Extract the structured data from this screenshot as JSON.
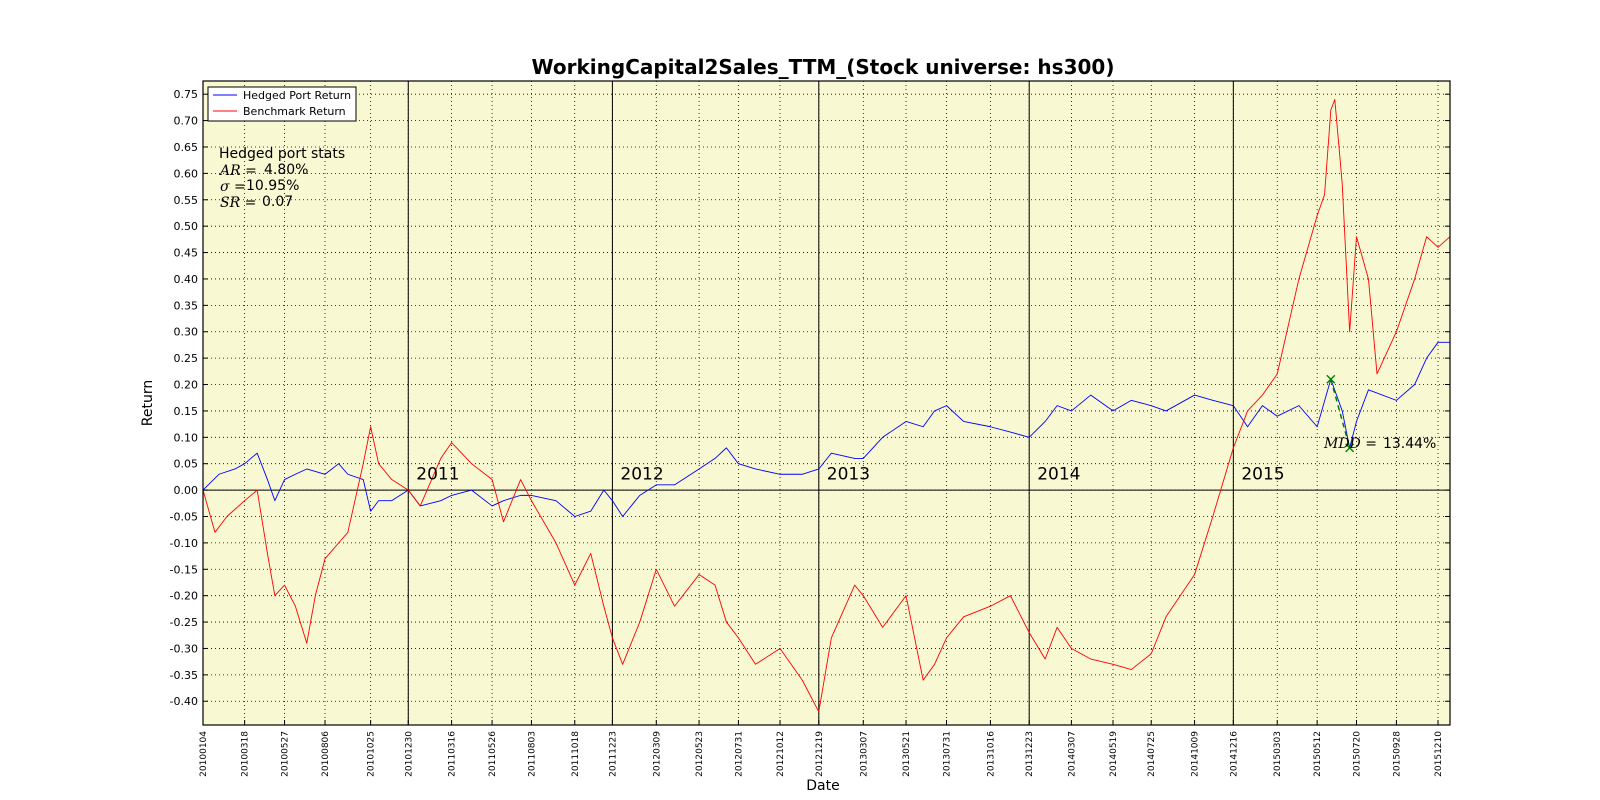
{
  "chart_data": {
    "type": "line",
    "title": "WorkingCapital2Sales_TTM_(Stock universe: hs300)",
    "xlabel": "Date",
    "ylabel": "Return",
    "ylim": [
      -0.445,
      0.775
    ],
    "yticks": [
      "0.75",
      "0.70",
      "0.65",
      "0.60",
      "0.55",
      "0.50",
      "0.45",
      "0.40",
      "0.35",
      "0.30",
      "0.25",
      "0.20",
      "0.15",
      "0.10",
      "0.05",
      "0.00",
      "-0.05",
      "-0.10",
      "-0.15",
      "-0.20",
      "-0.25",
      "-0.30",
      "-0.35",
      "-0.40"
    ],
    "xticks": [
      "20100104",
      "20100318",
      "20100527",
      "20100806",
      "20101025",
      "20101230",
      "20110316",
      "20110526",
      "20110803",
      "20111018",
      "20111223",
      "20120309",
      "20120523",
      "20120731",
      "20121012",
      "20121219",
      "20130307",
      "20130521",
      "20130731",
      "20131016",
      "20131223",
      "20140307",
      "20140519",
      "20140725",
      "20141009",
      "20141216",
      "20150303",
      "20150512",
      "20150720",
      "20150928",
      "20151210"
    ],
    "year_labels": [
      "2011",
      "2012",
      "2013",
      "2014",
      "2015"
    ],
    "year_boundaries": [
      "20101230",
      "20111223",
      "20121219",
      "20131223",
      "20141216"
    ],
    "grid": true,
    "legend_position": "top-left",
    "series": [
      {
        "name": "Hedged Port Return",
        "color": "#0000ff",
        "points": [
          [
            "20100104",
            0.0
          ],
          [
            "20100201",
            0.03
          ],
          [
            "20100301",
            0.04
          ],
          [
            "20100318",
            0.05
          ],
          [
            "20100409",
            0.07
          ],
          [
            "20100427",
            0.02
          ],
          [
            "20100510",
            -0.02
          ],
          [
            "20100527",
            0.02
          ],
          [
            "20100615",
            0.03
          ],
          [
            "20100705",
            0.04
          ],
          [
            "20100806",
            0.03
          ],
          [
            "20100830",
            0.05
          ],
          [
            "20100915",
            0.03
          ],
          [
            "20101012",
            0.02
          ],
          [
            "20101025",
            -0.04
          ],
          [
            "20101108",
            -0.02
          ],
          [
            "20101201",
            -0.02
          ],
          [
            "20101230",
            0.0
          ],
          [
            "20110120",
            -0.03
          ],
          [
            "20110225",
            -0.02
          ],
          [
            "20110316",
            -0.01
          ],
          [
            "20110420",
            0.0
          ],
          [
            "20110526",
            -0.03
          ],
          [
            "20110615",
            -0.02
          ],
          [
            "20110715",
            -0.01
          ],
          [
            "20110803",
            -0.01
          ],
          [
            "20110915",
            -0.02
          ],
          [
            "20111018",
            -0.05
          ],
          [
            "20111115",
            -0.04
          ],
          [
            "20111208",
            0.0
          ],
          [
            "20111223",
            -0.02
          ],
          [
            "20120110",
            -0.05
          ],
          [
            "20120209",
            -0.01
          ],
          [
            "20120309",
            0.01
          ],
          [
            "20120410",
            0.01
          ],
          [
            "20120523",
            0.04
          ],
          [
            "20120620",
            0.06
          ],
          [
            "20120710",
            0.08
          ],
          [
            "20120731",
            0.05
          ],
          [
            "20120830",
            0.04
          ],
          [
            "20121012",
            0.03
          ],
          [
            "20121120",
            0.03
          ],
          [
            "20121219",
            0.04
          ],
          [
            "20130110",
            0.07
          ],
          [
            "20130220",
            0.06
          ],
          [
            "20130307",
            0.06
          ],
          [
            "20130410",
            0.1
          ],
          [
            "20130521",
            0.13
          ],
          [
            "20130620",
            0.12
          ],
          [
            "20130710",
            0.15
          ],
          [
            "20130731",
            0.16
          ],
          [
            "20130830",
            0.13
          ],
          [
            "20131016",
            0.12
          ],
          [
            "20131120",
            0.11
          ],
          [
            "20131223",
            0.1
          ],
          [
            "20140120",
            0.13
          ],
          [
            "20140210",
            0.16
          ],
          [
            "20140307",
            0.15
          ],
          [
            "20140410",
            0.18
          ],
          [
            "20140519",
            0.15
          ],
          [
            "20140620",
            0.17
          ],
          [
            "20140725",
            0.16
          ],
          [
            "20140820",
            0.15
          ],
          [
            "20141009",
            0.18
          ],
          [
            "20141110",
            0.17
          ],
          [
            "20141216",
            0.16
          ],
          [
            "20150110",
            0.12
          ],
          [
            "20150205",
            0.16
          ],
          [
            "20150303",
            0.14
          ],
          [
            "20150410",
            0.16
          ],
          [
            "20150512",
            0.12
          ],
          [
            "20150605",
            0.21
          ],
          [
            "20150625",
            0.15
          ],
          [
            "20150708",
            0.08
          ],
          [
            "20150720",
            0.13
          ],
          [
            "20150810",
            0.19
          ],
          [
            "20150928",
            0.17
          ],
          [
            "20151030",
            0.2
          ],
          [
            "20151120",
            0.25
          ],
          [
            "20151210",
            0.28
          ],
          [
            "20151231",
            0.28
          ]
        ]
      },
      {
        "name": "Benchmark Return",
        "color": "#ff0000",
        "points": [
          [
            "20100104",
            0.0
          ],
          [
            "20100125",
            -0.08
          ],
          [
            "20100215",
            -0.05
          ],
          [
            "20100318",
            -0.02
          ],
          [
            "20100409",
            0.0
          ],
          [
            "20100427",
            -0.12
          ],
          [
            "20100510",
            -0.2
          ],
          [
            "20100527",
            -0.18
          ],
          [
            "20100615",
            -0.22
          ],
          [
            "20100705",
            -0.29
          ],
          [
            "20100720",
            -0.2
          ],
          [
            "20100806",
            -0.13
          ],
          [
            "20100830",
            -0.1
          ],
          [
            "20100915",
            -0.08
          ],
          [
            "20101012",
            0.05
          ],
          [
            "20101025",
            0.12
          ],
          [
            "20101108",
            0.05
          ],
          [
            "20101201",
            0.02
          ],
          [
            "20101230",
            0.0
          ],
          [
            "20110120",
            -0.03
          ],
          [
            "20110225",
            0.06
          ],
          [
            "20110316",
            0.09
          ],
          [
            "20110420",
            0.05
          ],
          [
            "20110526",
            0.02
          ],
          [
            "20110615",
            -0.06
          ],
          [
            "20110715",
            0.02
          ],
          [
            "20110803",
            -0.02
          ],
          [
            "20110915",
            -0.1
          ],
          [
            "20111018",
            -0.18
          ],
          [
            "20111115",
            -0.12
          ],
          [
            "20111208",
            -0.22
          ],
          [
            "20111223",
            -0.28
          ],
          [
            "20120110",
            -0.33
          ],
          [
            "20120209",
            -0.25
          ],
          [
            "20120309",
            -0.15
          ],
          [
            "20120410",
            -0.22
          ],
          [
            "20120523",
            -0.16
          ],
          [
            "20120620",
            -0.18
          ],
          [
            "20120710",
            -0.25
          ],
          [
            "20120731",
            -0.28
          ],
          [
            "20120830",
            -0.33
          ],
          [
            "20121012",
            -0.3
          ],
          [
            "20121120",
            -0.36
          ],
          [
            "20121219",
            -0.42
          ],
          [
            "20130110",
            -0.28
          ],
          [
            "20130220",
            -0.18
          ],
          [
            "20130307",
            -0.2
          ],
          [
            "20130410",
            -0.26
          ],
          [
            "20130521",
            -0.2
          ],
          [
            "20130620",
            -0.36
          ],
          [
            "20130710",
            -0.33
          ],
          [
            "20130731",
            -0.28
          ],
          [
            "20130830",
            -0.24
          ],
          [
            "20131016",
            -0.22
          ],
          [
            "20131120",
            -0.2
          ],
          [
            "20131223",
            -0.27
          ],
          [
            "20140120",
            -0.32
          ],
          [
            "20140210",
            -0.26
          ],
          [
            "20140307",
            -0.3
          ],
          [
            "20140410",
            -0.32
          ],
          [
            "20140519",
            -0.33
          ],
          [
            "20140620",
            -0.34
          ],
          [
            "20140725",
            -0.31
          ],
          [
            "20140820",
            -0.24
          ],
          [
            "20141009",
            -0.16
          ],
          [
            "20141110",
            -0.05
          ],
          [
            "20141216",
            0.08
          ],
          [
            "20150110",
            0.15
          ],
          [
            "20150205",
            0.18
          ],
          [
            "20150303",
            0.22
          ],
          [
            "20150410",
            0.4
          ],
          [
            "20150512",
            0.52
          ],
          [
            "20150525",
            0.56
          ],
          [
            "20150605",
            0.72
          ],
          [
            "20150612",
            0.74
          ],
          [
            "20150625",
            0.58
          ],
          [
            "20150708",
            0.3
          ],
          [
            "20150720",
            0.48
          ],
          [
            "20150810",
            0.4
          ],
          [
            "20150825",
            0.22
          ],
          [
            "20150928",
            0.3
          ],
          [
            "20151030",
            0.4
          ],
          [
            "20151120",
            0.48
          ],
          [
            "20151210",
            0.46
          ],
          [
            "20151231",
            0.48
          ]
        ]
      }
    ],
    "stats": {
      "heading": "Hedged port stats",
      "ar_label": "AR =",
      "ar_value": "4.80%",
      "sigma_label": "σ =",
      "sigma_value": "10.95%",
      "sr_label": "SR =",
      "sr_value": "0.07"
    },
    "max_drawdown": {
      "label": "MDD =",
      "value": "13.44%",
      "peak": [
        "20150605",
        0.21
      ],
      "trough": [
        "20150708",
        0.08
      ],
      "color": "#008000"
    },
    "plot_background": "#f8f8d2"
  }
}
